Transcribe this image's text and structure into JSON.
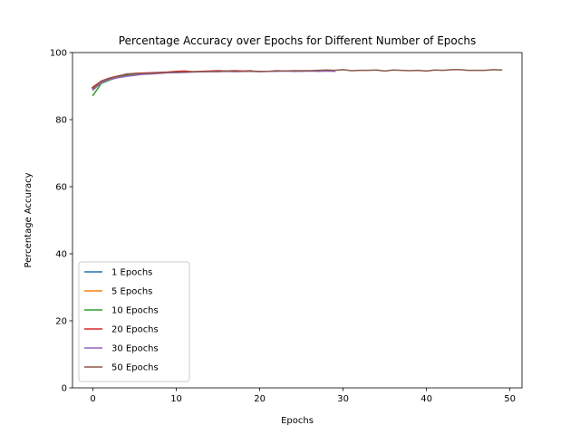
{
  "chart_data": {
    "type": "line",
    "title": "Percentage Accuracy over Epochs for Different Number of Epochs",
    "xlabel": "Epochs",
    "ylabel": "Percentage Accuracy",
    "xlim": [
      -2.45,
      51.45
    ],
    "ylim": [
      0,
      100
    ],
    "xticks": [
      0,
      10,
      20,
      30,
      40,
      50
    ],
    "yticks": [
      0,
      20,
      40,
      60,
      80,
      100
    ],
    "grid": false,
    "legend_position": "lower-left",
    "series": [
      {
        "name": "1 Epochs",
        "color": "#1f77b4",
        "x": [
          0
        ],
        "values": [
          89.5
        ]
      },
      {
        "name": "5 Epochs",
        "color": "#ff7f0e",
        "x": [
          0,
          1,
          2,
          3,
          4
        ],
        "values": [
          89.0,
          91.2,
          92.0,
          92.6,
          93.1
        ]
      },
      {
        "name": "10 Epochs",
        "color": "#2ca02c",
        "x": [
          0,
          1,
          2,
          3,
          4,
          5,
          6,
          7,
          8,
          9
        ],
        "values": [
          87.2,
          90.8,
          91.8,
          92.6,
          93.2,
          93.5,
          93.7,
          93.8,
          93.9,
          94.0
        ]
      },
      {
        "name": "20 Epochs",
        "color": "#d62728",
        "x": [
          0,
          1,
          2,
          3,
          4,
          5,
          6,
          7,
          8,
          9,
          10,
          11,
          12,
          13,
          14,
          15,
          16,
          17,
          18,
          19
        ],
        "values": [
          89.7,
          91.5,
          92.4,
          93.0,
          93.5,
          93.8,
          93.9,
          94.0,
          94.1,
          94.2,
          94.4,
          94.5,
          94.3,
          94.4,
          94.5,
          94.6,
          94.5,
          94.6,
          94.5,
          94.6
        ]
      },
      {
        "name": "30 Epochs",
        "color": "#9467bd",
        "x": [
          0,
          1,
          2,
          3,
          4,
          5,
          6,
          7,
          8,
          9,
          10,
          11,
          12,
          13,
          14,
          15,
          16,
          17,
          18,
          19,
          20,
          21,
          22,
          23,
          24,
          25,
          26,
          27,
          28,
          29
        ],
        "values": [
          88.8,
          91.0,
          92.0,
          92.5,
          92.9,
          93.2,
          93.5,
          93.6,
          93.8,
          94.0,
          94.0,
          94.1,
          94.2,
          94.3,
          94.3,
          94.3,
          94.4,
          94.3,
          94.4,
          94.4,
          94.3,
          94.4,
          94.4,
          94.5,
          94.4,
          94.4,
          94.5,
          94.4,
          94.5,
          94.4
        ]
      },
      {
        "name": "50 Epochs",
        "color": "#8c564b",
        "x": [
          0,
          1,
          2,
          3,
          4,
          5,
          6,
          7,
          8,
          9,
          10,
          11,
          12,
          13,
          14,
          15,
          16,
          17,
          18,
          19,
          20,
          21,
          22,
          23,
          24,
          25,
          26,
          27,
          28,
          29,
          30,
          31,
          32,
          33,
          34,
          35,
          36,
          37,
          38,
          39,
          40,
          41,
          42,
          43,
          44,
          45,
          46,
          47,
          48,
          49
        ],
        "values": [
          89.3,
          91.5,
          92.3,
          92.9,
          93.6,
          93.7,
          93.8,
          93.9,
          94.0,
          94.1,
          94.2,
          94.2,
          94.3,
          94.3,
          94.4,
          94.4,
          94.5,
          94.5,
          94.4,
          94.5,
          94.4,
          94.4,
          94.6,
          94.5,
          94.6,
          94.6,
          94.6,
          94.7,
          94.8,
          94.7,
          94.9,
          94.6,
          94.7,
          94.7,
          94.8,
          94.5,
          94.8,
          94.7,
          94.6,
          94.7,
          94.5,
          94.8,
          94.7,
          94.9,
          94.9,
          94.7,
          94.7,
          94.7,
          94.9,
          94.8
        ]
      }
    ]
  }
}
